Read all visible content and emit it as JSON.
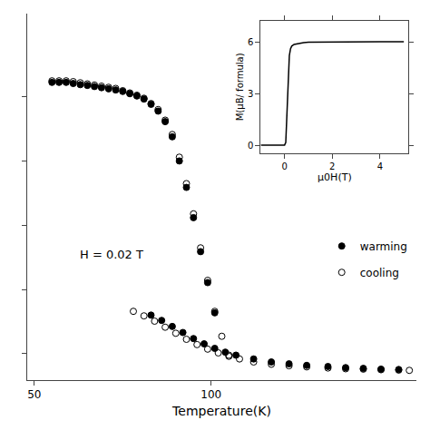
{
  "chart_data": [
    {
      "type": "scatter",
      "xlabel": "Temperature(K)",
      "xlim": [
        48,
        158
      ],
      "xticks": [
        50,
        100
      ],
      "ylim": [
        -0.2,
        9.5
      ],
      "yticks": [
        0.5,
        2.2,
        3.9,
        5.6,
        7.3
      ],
      "tick_labels": "x",
      "grid": false,
      "legend": "right",
      "annotations": [
        {
          "text": "H = 0.02 T"
        }
      ],
      "series": [
        {
          "name": "warming",
          "marker": "circle",
          "color": "#000000",
          "x": [
            55,
            57,
            59,
            61,
            63,
            65,
            67,
            69,
            71,
            73,
            75,
            77,
            79,
            81,
            83,
            85,
            87,
            89,
            91,
            93,
            95,
            97,
            99,
            101
          ],
          "values": [
            7.68,
            7.68,
            7.68,
            7.65,
            7.62,
            7.6,
            7.57,
            7.54,
            7.51,
            7.48,
            7.44,
            7.38,
            7.32,
            7.24,
            7.1,
            6.92,
            6.64,
            6.24,
            5.6,
            4.9,
            4.1,
            3.2,
            2.38,
            1.58
          ]
        },
        {
          "name": "cooling",
          "marker": "circle-open",
          "color": "#000000",
          "x": [
            55,
            57,
            59,
            61,
            63,
            65,
            67,
            69,
            71,
            73,
            75,
            77,
            79,
            81,
            83,
            85,
            87,
            89,
            91,
            93,
            95,
            97,
            99,
            101,
            103,
            105
          ],
          "values": [
            7.72,
            7.72,
            7.72,
            7.7,
            7.67,
            7.64,
            7.61,
            7.58,
            7.55,
            7.52,
            7.46,
            7.4,
            7.34,
            7.26,
            7.12,
            6.96,
            6.68,
            6.3,
            5.7,
            5.0,
            4.2,
            3.3,
            2.44,
            1.62,
            0.96,
            0.46
          ]
        },
        {
          "name": "warming",
          "marker": "circle",
          "color": "#000000",
          "x": [
            83,
            86,
            89,
            92,
            95,
            98,
            101,
            104,
            107,
            112,
            117,
            122,
            127,
            133,
            138,
            143,
            148,
            153
          ],
          "values": [
            1.52,
            1.38,
            1.22,
            1.06,
            0.9,
            0.76,
            0.64,
            0.54,
            0.46,
            0.36,
            0.28,
            0.23,
            0.19,
            0.16,
            0.13,
            0.11,
            0.09,
            0.08
          ]
        },
        {
          "name": "cooling",
          "marker": "circle-open",
          "color": "#000000",
          "x": [
            78,
            81,
            84,
            87,
            90,
            93,
            96,
            99,
            102,
            105,
            108,
            112,
            117,
            122,
            127,
            133,
            138,
            143,
            148,
            153,
            156
          ],
          "values": [
            1.62,
            1.5,
            1.36,
            1.2,
            1.04,
            0.88,
            0.74,
            0.62,
            0.52,
            0.43,
            0.36,
            0.28,
            0.22,
            0.18,
            0.15,
            0.12,
            0.1,
            0.09,
            0.075,
            0.065,
            0.058
          ]
        }
      ]
    },
    {
      "type": "line",
      "xlabel": "μ0H(T)",
      "ylabel": "M(μB/ formula)",
      "xlim": [
        -1.0,
        5.2
      ],
      "xticks": [
        0,
        2,
        4
      ],
      "ylim": [
        -0.4,
        7.2
      ],
      "yticks": [
        0,
        3,
        6
      ],
      "grid": false,
      "x": [
        -1.0,
        -0.5,
        -0.3,
        -0.2,
        -0.15,
        -0.05,
        0.0,
        0.05,
        0.1,
        0.15,
        0.2,
        0.25,
        0.3,
        0.4,
        0.6,
        0.8,
        1.0,
        1.5,
        2.0,
        2.5,
        3.0,
        3.5,
        4.0,
        4.5,
        5.0
      ],
      "series": [
        {
          "color": "#000000",
          "line_style": "solid",
          "values": [
            0.05,
            0.05,
            0.05,
            0.05,
            0.05,
            0.05,
            0.05,
            0.2,
            1.8,
            4.0,
            5.2,
            5.6,
            5.75,
            5.85,
            5.92,
            5.95,
            5.97,
            5.98,
            5.99,
            5.99,
            5.995,
            5.995,
            5.997,
            5.998,
            6.0
          ]
        }
      ]
    }
  ]
}
